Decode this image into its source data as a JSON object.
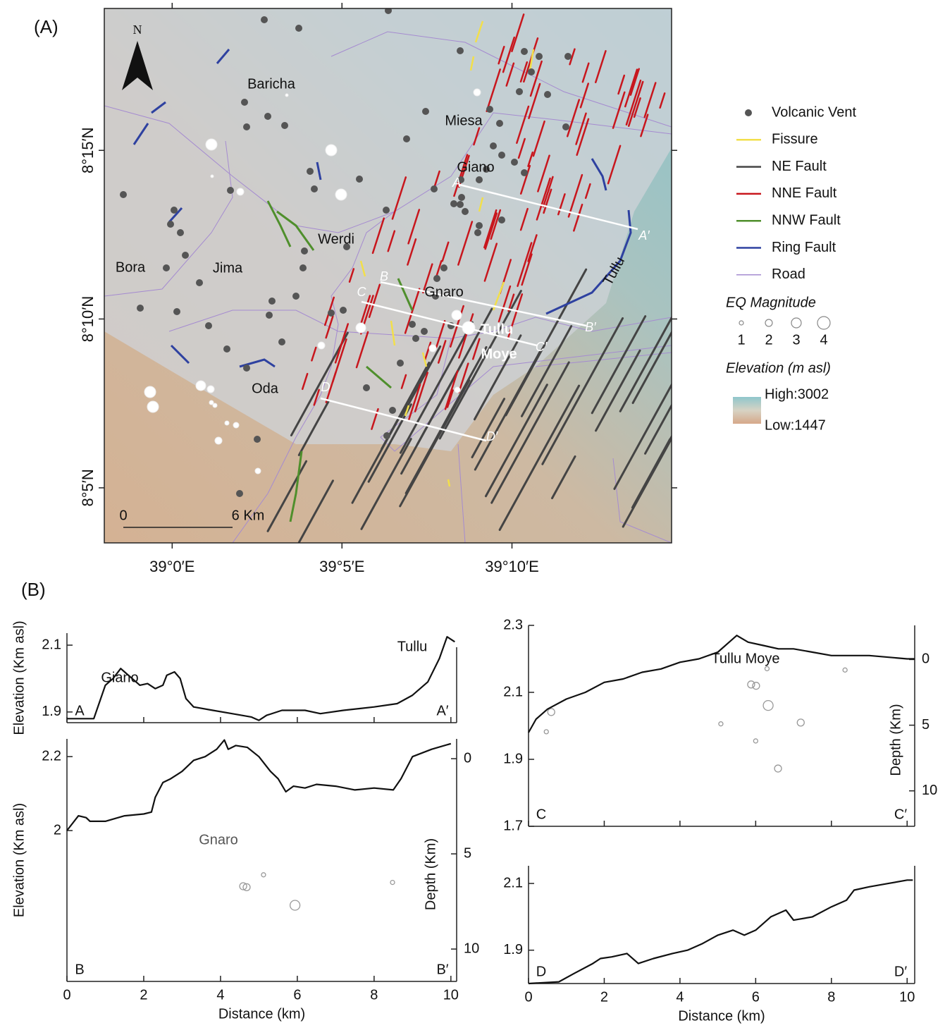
{
  "panel_a": {
    "label": "(A)",
    "north": "N",
    "xlim": [
      38.9667,
      39.245
    ],
    "ylim": [
      8.0561,
      8.3201
    ],
    "xticks": [
      {
        "value": 39.0,
        "label": "39°0′E"
      },
      {
        "value": 39.0833,
        "label": "39°5′E"
      },
      {
        "value": 39.1667,
        "label": "39°10′E"
      }
    ],
    "yticks": [
      {
        "value": 8.25,
        "label": "8°15′N"
      },
      {
        "value": 8.1667,
        "label": "8°10′N"
      },
      {
        "value": 8.0833,
        "label": "8°5′N"
      }
    ],
    "places": [
      "Baricha",
      "Miesa",
      "Giano",
      "Werdi",
      "Bora",
      "Jima",
      "Gnaro",
      "Tullu",
      "Oda"
    ],
    "volcano": [
      "Tullu",
      "Moye"
    ],
    "profiles": [
      "A",
      "A′",
      "B",
      "B′",
      "C",
      "C′",
      "D",
      "D′"
    ],
    "scale": [
      "0",
      "6 Km"
    ],
    "legend": [
      {
        "label": "Volcanic Vent",
        "color": "#555555"
      },
      {
        "label": "Fissure",
        "color": "#f2df4a"
      },
      {
        "label": "NE Fault",
        "color": "#444444"
      },
      {
        "label": "NNE Fault",
        "color": "#c8161d"
      },
      {
        "label": "NNW Fault",
        "color": "#4f8f2c"
      },
      {
        "label": "Ring Fault",
        "color": "#2e41a0"
      },
      {
        "label": "Road",
        "color": "#a58bd0"
      }
    ],
    "eq_magnitude": {
      "title": "EQ Magnitude",
      "values": [
        1,
        2,
        3,
        4
      ]
    },
    "elevation": {
      "title": "Elevation (m asl)",
      "high": "High:3002",
      "low": "Low:1447"
    }
  },
  "panel_b_label": "(B)",
  "chart_data": [
    {
      "type": "line",
      "ylabel": "Elevation (Km asl)",
      "start": "A",
      "end": "A′",
      "annotations": [
        "Giano",
        "Tullu"
      ],
      "xlim": [
        0,
        10.15
      ],
      "ylim": [
        1.868,
        2.136
      ],
      "yticks": [
        1.9,
        2.1
      ],
      "x": [
        0,
        0.7,
        0.85,
        1.0,
        1.2,
        1.4,
        1.5,
        1.7,
        1.9,
        2.1,
        2.3,
        2.5,
        2.6,
        2.8,
        2.95,
        3.1,
        3.3,
        3.8,
        4.3,
        4.8,
        5.0,
        5.2,
        5.6,
        6.2,
        6.6,
        7.2,
        7.6,
        8.0,
        8.6,
        9.0,
        9.4,
        9.7,
        9.9,
        10.1
      ],
      "series": [
        {
          "color": "#111111",
          "values": [
            1.88,
            1.88,
            1.93,
            1.98,
            2.0,
            2.03,
            2.02,
            2.0,
            1.98,
            1.985,
            1.97,
            1.98,
            2.01,
            2.02,
            2.0,
            1.94,
            1.915,
            1.905,
            1.895,
            1.885,
            1.875,
            1.89,
            1.905,
            1.905,
            1.895,
            1.905,
            1.91,
            1.915,
            1.925,
            1.95,
            1.99,
            2.06,
            2.125,
            2.11
          ]
        }
      ]
    },
    {
      "type": "line",
      "ylabel": "Elevation (Km asl)",
      "y2label": "Depth (Km)",
      "xlabel": "Distance (km)",
      "start": "B",
      "end": "B′",
      "annotations": [
        "Gnaro"
      ],
      "xlim": [
        0,
        10.15
      ],
      "ylim": [
        1.592,
        2.248
      ],
      "yticks": [
        2.0,
        2.2
      ],
      "y2lim": [
        11.7,
        -1.04
      ],
      "y2ticks": [
        0,
        5,
        10
      ],
      "xticks": [
        0,
        2,
        4,
        6,
        8,
        10
      ],
      "x": [
        0,
        0.3,
        0.5,
        0.6,
        1.0,
        1.5,
        2.0,
        2.2,
        2.3,
        2.5,
        2.7,
        3.0,
        3.3,
        3.6,
        3.9,
        4.1,
        4.2,
        4.4,
        4.7,
        5.0,
        5.3,
        5.5,
        5.7,
        5.9,
        6.2,
        6.5,
        7.0,
        7.5,
        8.0,
        8.5,
        8.7,
        9.0,
        9.5,
        10.0
      ],
      "series": [
        {
          "color": "#111111",
          "values": [
            2.0,
            2.04,
            2.035,
            2.025,
            2.025,
            2.04,
            2.045,
            2.05,
            2.09,
            2.13,
            2.14,
            2.16,
            2.19,
            2.2,
            2.22,
            2.245,
            2.22,
            2.23,
            2.225,
            2.2,
            2.16,
            2.14,
            2.105,
            2.12,
            2.115,
            2.125,
            2.12,
            2.11,
            2.115,
            2.11,
            2.14,
            2.2,
            2.22,
            2.235
          ]
        }
      ],
      "earthquakes": {
        "axis": "y2",
        "color": "#999999",
        "x": [
          4.59,
          4.68,
          5.12,
          5.94,
          8.48
        ],
        "values": [
          6.7,
          6.75,
          6.1,
          7.7,
          6.5
        ],
        "sizes": [
          2,
          2,
          1,
          3,
          1
        ]
      }
    },
    {
      "type": "line",
      "y2label": "Depth (Km)",
      "start": "C",
      "end": "C′",
      "annotations": [
        "Tullu Moye"
      ],
      "xlim": [
        0,
        10.2
      ],
      "ylim": [
        1.7,
        2.3
      ],
      "yticks": [
        1.7,
        1.9,
        2.1,
        2.3
      ],
      "y2lim": [
        12.7,
        -2.6
      ],
      "y2ticks": [
        0,
        5,
        10
      ],
      "x": [
        0,
        0.2,
        0.5,
        1.0,
        1.5,
        2.0,
        2.5,
        3.0,
        3.5,
        4.0,
        4.5,
        5.0,
        5.3,
        5.5,
        5.8,
        6.2,
        6.6,
        7.0,
        7.5,
        8.0,
        9.0,
        10.0,
        10.2
      ],
      "series": [
        {
          "color": "#111111",
          "values": [
            1.98,
            2.02,
            2.05,
            2.08,
            2.1,
            2.13,
            2.14,
            2.16,
            2.17,
            2.19,
            2.2,
            2.22,
            2.25,
            2.27,
            2.25,
            2.24,
            2.23,
            2.23,
            2.22,
            2.21,
            2.21,
            2.2,
            2.2
          ]
        }
      ],
      "earthquakes": {
        "axis": "y2",
        "color": "#999999",
        "x": [
          6.3,
          8.36,
          5.88,
          6.01,
          5.08,
          6.33,
          6.0,
          7.19,
          6.59,
          0.6,
          0.47
        ],
        "values": [
          0.7,
          0.8,
          1.9,
          2.0,
          4.9,
          3.5,
          6.2,
          4.8,
          8.3,
          4.0,
          5.5
        ],
        "sizes": [
          1,
          1,
          2,
          2,
          1,
          3,
          1,
          2,
          2,
          2,
          1
        ]
      }
    },
    {
      "type": "line",
      "xlabel": "Distance (km)",
      "start": "D",
      "end": "D′",
      "xlim": [
        0,
        10.2
      ],
      "ylim": [
        1.8,
        2.153
      ],
      "yticks": [
        1.9,
        2.1
      ],
      "xticks": [
        0,
        2,
        4,
        6,
        8,
        10
      ],
      "x": [
        0,
        0.8,
        1.2,
        1.7,
        1.9,
        2.2,
        2.6,
        2.9,
        3.3,
        3.8,
        4.2,
        4.6,
        5.0,
        5.4,
        5.7,
        6.0,
        6.4,
        6.8,
        7.0,
        7.5,
        8.0,
        8.4,
        8.6,
        9.0,
        9.5,
        10.0,
        10.15
      ],
      "series": [
        {
          "color": "#111111",
          "values": [
            1.8,
            1.805,
            1.83,
            1.86,
            1.875,
            1.88,
            1.89,
            1.86,
            1.875,
            1.89,
            1.9,
            1.92,
            1.945,
            1.96,
            1.945,
            1.96,
            2.0,
            2.02,
            1.99,
            2.0,
            2.03,
            2.05,
            2.08,
            2.09,
            2.1,
            2.11,
            2.11
          ]
        }
      ]
    }
  ]
}
